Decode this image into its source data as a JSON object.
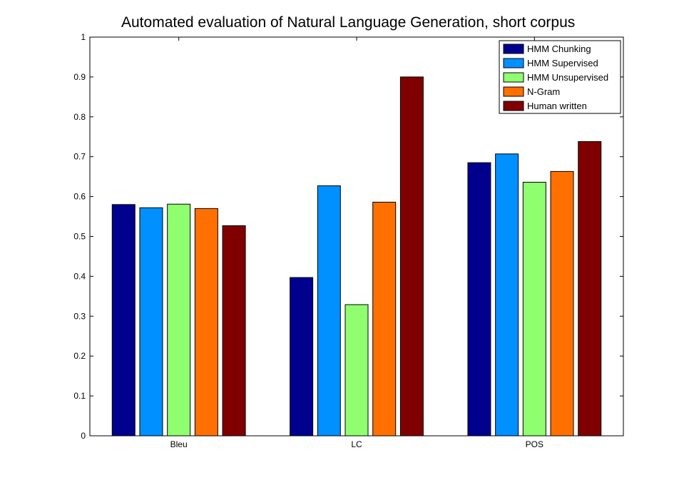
{
  "chart_data": {
    "type": "bar",
    "title": "Automated evaluation of Natural Language Generation, short corpus",
    "xlabel": "",
    "ylabel": "",
    "categories": [
      "Bleu",
      "LC",
      "POS"
    ],
    "ylim": [
      0,
      1
    ],
    "yticks": [
      "0",
      "0.1",
      "0.2",
      "0.3",
      "0.4",
      "0.5",
      "0.6",
      "0.7",
      "0.8",
      "0.9",
      "1"
    ],
    "grid": false,
    "legend_position": "top-right",
    "series": [
      {
        "name": "HMM Chunking",
        "color": "#00008F",
        "values": [
          0.58,
          0.397,
          0.685
        ]
      },
      {
        "name": "HMM Supervised",
        "color": "#0090FF",
        "values": [
          0.572,
          0.627,
          0.707
        ]
      },
      {
        "name": "HMM Unsupervised",
        "color": "#8FFF70",
        "values": [
          0.581,
          0.329,
          0.636
        ]
      },
      {
        "name": "N-Gram",
        "color": "#FF7000",
        "values": [
          0.57,
          0.586,
          0.663
        ]
      },
      {
        "name": "Human written",
        "color": "#800000",
        "values": [
          0.527,
          0.9,
          0.738
        ]
      }
    ]
  }
}
